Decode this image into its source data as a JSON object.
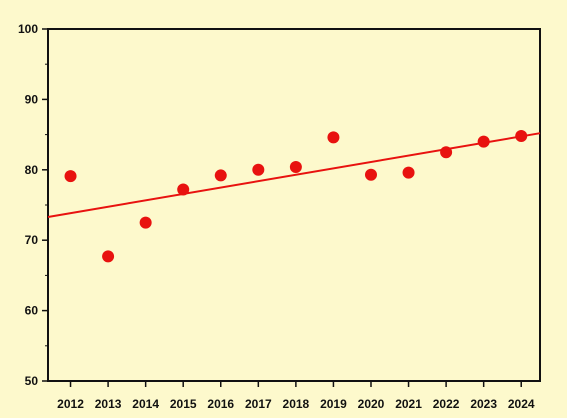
{
  "chart_data": {
    "type": "scatter",
    "title": "",
    "xlabel": "",
    "ylabel": "",
    "x": [
      2012,
      2013,
      2014,
      2015,
      2016,
      2017,
      2018,
      2019,
      2020,
      2021,
      2022,
      2023,
      2024
    ],
    "y": [
      79.1,
      67.7,
      72.5,
      77.2,
      79.2,
      80.0,
      80.4,
      84.6,
      79.3,
      79.6,
      82.5,
      84.0,
      84.8
    ],
    "xticks": [
      "2012",
      "2013",
      "2014",
      "2015",
      "2016",
      "2017",
      "2018",
      "2019",
      "2020",
      "2021",
      "2022",
      "2023",
      "2024"
    ],
    "yticks": [
      "50",
      "60",
      "70",
      "80",
      "90",
      "100"
    ],
    "xlim": [
      2011.4,
      2024.5
    ],
    "ylim": [
      50,
      100
    ],
    "trendline": {
      "x": [
        2011.4,
        2024.5
      ],
      "y": [
        73.3,
        85.2
      ]
    },
    "grid": false,
    "legend": "none",
    "colors": {
      "background": "#fdf9cc",
      "points": "#e8120f",
      "trendline": "#e8120f",
      "axes": "#111111"
    }
  }
}
